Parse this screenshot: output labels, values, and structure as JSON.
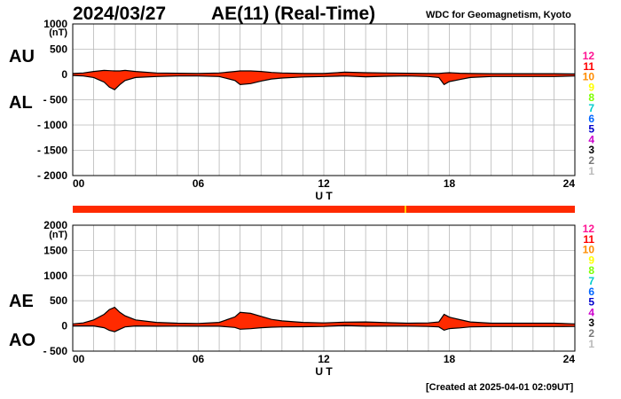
{
  "header": {
    "date": "2024/03/27",
    "title": "AE(11) (Real-Time)",
    "credit": "WDC for Geomagnetism, Kyoto",
    "created": "[Created at 2025-04-01 02:09UT]"
  },
  "labels": {
    "au": "AU",
    "al": "AL",
    "ae": "AE",
    "ao": "AO",
    "unit": "(nT)",
    "xlabel": "U T"
  },
  "legend": [
    {
      "label": "12",
      "color": "#ff1493"
    },
    {
      "label": "11",
      "color": "#ff0000"
    },
    {
      "label": "10",
      "color": "#ff8c00"
    },
    {
      "label": "9",
      "color": "#ffff00"
    },
    {
      "label": "8",
      "color": "#7fff00"
    },
    {
      "label": "7",
      "color": "#00cccc"
    },
    {
      "label": "6",
      "color": "#0066ff"
    },
    {
      "label": "5",
      "color": "#0000cc"
    },
    {
      "label": "4",
      "color": "#cc00cc"
    },
    {
      "label": "3",
      "color": "#000000"
    },
    {
      "label": "2",
      "color": "#777777"
    },
    {
      "label": "1",
      "color": "#bbbbbb"
    }
  ],
  "station_bar": {
    "main_color": "#ff2a00",
    "marker_hour": 15.9,
    "marker_color": "#ffcc00"
  },
  "chart_data": [
    {
      "type": "area",
      "panel": "AU/AL",
      "xlabel": "U T",
      "ylabel": "(nT)",
      "xlim": [
        0,
        24
      ],
      "ylim": [
        -2000,
        1000
      ],
      "yticks": [
        1000,
        500,
        0,
        -500,
        -1000,
        -1500,
        -2000
      ],
      "xticks": [
        "00",
        "06",
        "12",
        "18",
        "24"
      ],
      "grid": true,
      "fill_color": "#ff2a00",
      "x": [
        0,
        0.5,
        1,
        1.5,
        1.75,
        2,
        2.25,
        2.5,
        3,
        4,
        5,
        6,
        7,
        7.75,
        8,
        8.5,
        9,
        9.5,
        10,
        11,
        12,
        13,
        14,
        15,
        16,
        17,
        17.5,
        17.75,
        18,
        18.5,
        19,
        20,
        21,
        22,
        23,
        24
      ],
      "series": [
        {
          "name": "AU",
          "values": [
            20,
            30,
            60,
            80,
            75,
            70,
            70,
            80,
            60,
            30,
            25,
            20,
            30,
            60,
            70,
            70,
            60,
            40,
            30,
            20,
            20,
            45,
            35,
            30,
            25,
            20,
            20,
            30,
            35,
            25,
            20,
            15,
            15,
            15,
            15,
            10
          ]
        },
        {
          "name": "AL",
          "values": [
            -20,
            -30,
            -60,
            -150,
            -250,
            -300,
            -200,
            -120,
            -60,
            -40,
            -30,
            -30,
            -40,
            -120,
            -200,
            -180,
            -130,
            -90,
            -70,
            -50,
            -40,
            -30,
            -45,
            -35,
            -30,
            -40,
            -60,
            -200,
            -140,
            -100,
            -60,
            -40,
            -40,
            -40,
            -40,
            -30
          ]
        }
      ]
    },
    {
      "type": "area",
      "panel": "AE/AO",
      "xlabel": "U T",
      "ylabel": "(nT)",
      "xlim": [
        0,
        24
      ],
      "ylim": [
        -500,
        2000
      ],
      "yticks": [
        2000,
        1500,
        1000,
        500,
        0,
        -500
      ],
      "xticks": [
        "00",
        "06",
        "12",
        "18",
        "24"
      ],
      "grid": true,
      "fill_color": "#ff2a00",
      "x": [
        0,
        0.5,
        1,
        1.5,
        1.75,
        2,
        2.25,
        2.5,
        3,
        4,
        5,
        6,
        7,
        7.75,
        8,
        8.5,
        9,
        9.5,
        10,
        11,
        12,
        13,
        14,
        15,
        16,
        17,
        17.5,
        17.75,
        18,
        18.5,
        19,
        20,
        21,
        22,
        23,
        24
      ],
      "series": [
        {
          "name": "AE",
          "values": [
            40,
            60,
            120,
            230,
            325,
            370,
            270,
            200,
            120,
            70,
            55,
            50,
            70,
            180,
            270,
            250,
            190,
            130,
            100,
            70,
            60,
            75,
            80,
            65,
            55,
            60,
            80,
            230,
            175,
            125,
            80,
            55,
            55,
            55,
            55,
            40
          ]
        },
        {
          "name": "AO",
          "values": [
            0,
            0,
            0,
            -35,
            -88,
            -115,
            -65,
            -20,
            0,
            -5,
            -3,
            -5,
            -5,
            -30,
            -65,
            -55,
            -35,
            -25,
            -20,
            -15,
            -10,
            8,
            -5,
            -3,
            -3,
            -10,
            -20,
            -85,
            -52,
            -38,
            -20,
            -13,
            -13,
            -13,
            -13,
            -10
          ]
        }
      ]
    }
  ]
}
